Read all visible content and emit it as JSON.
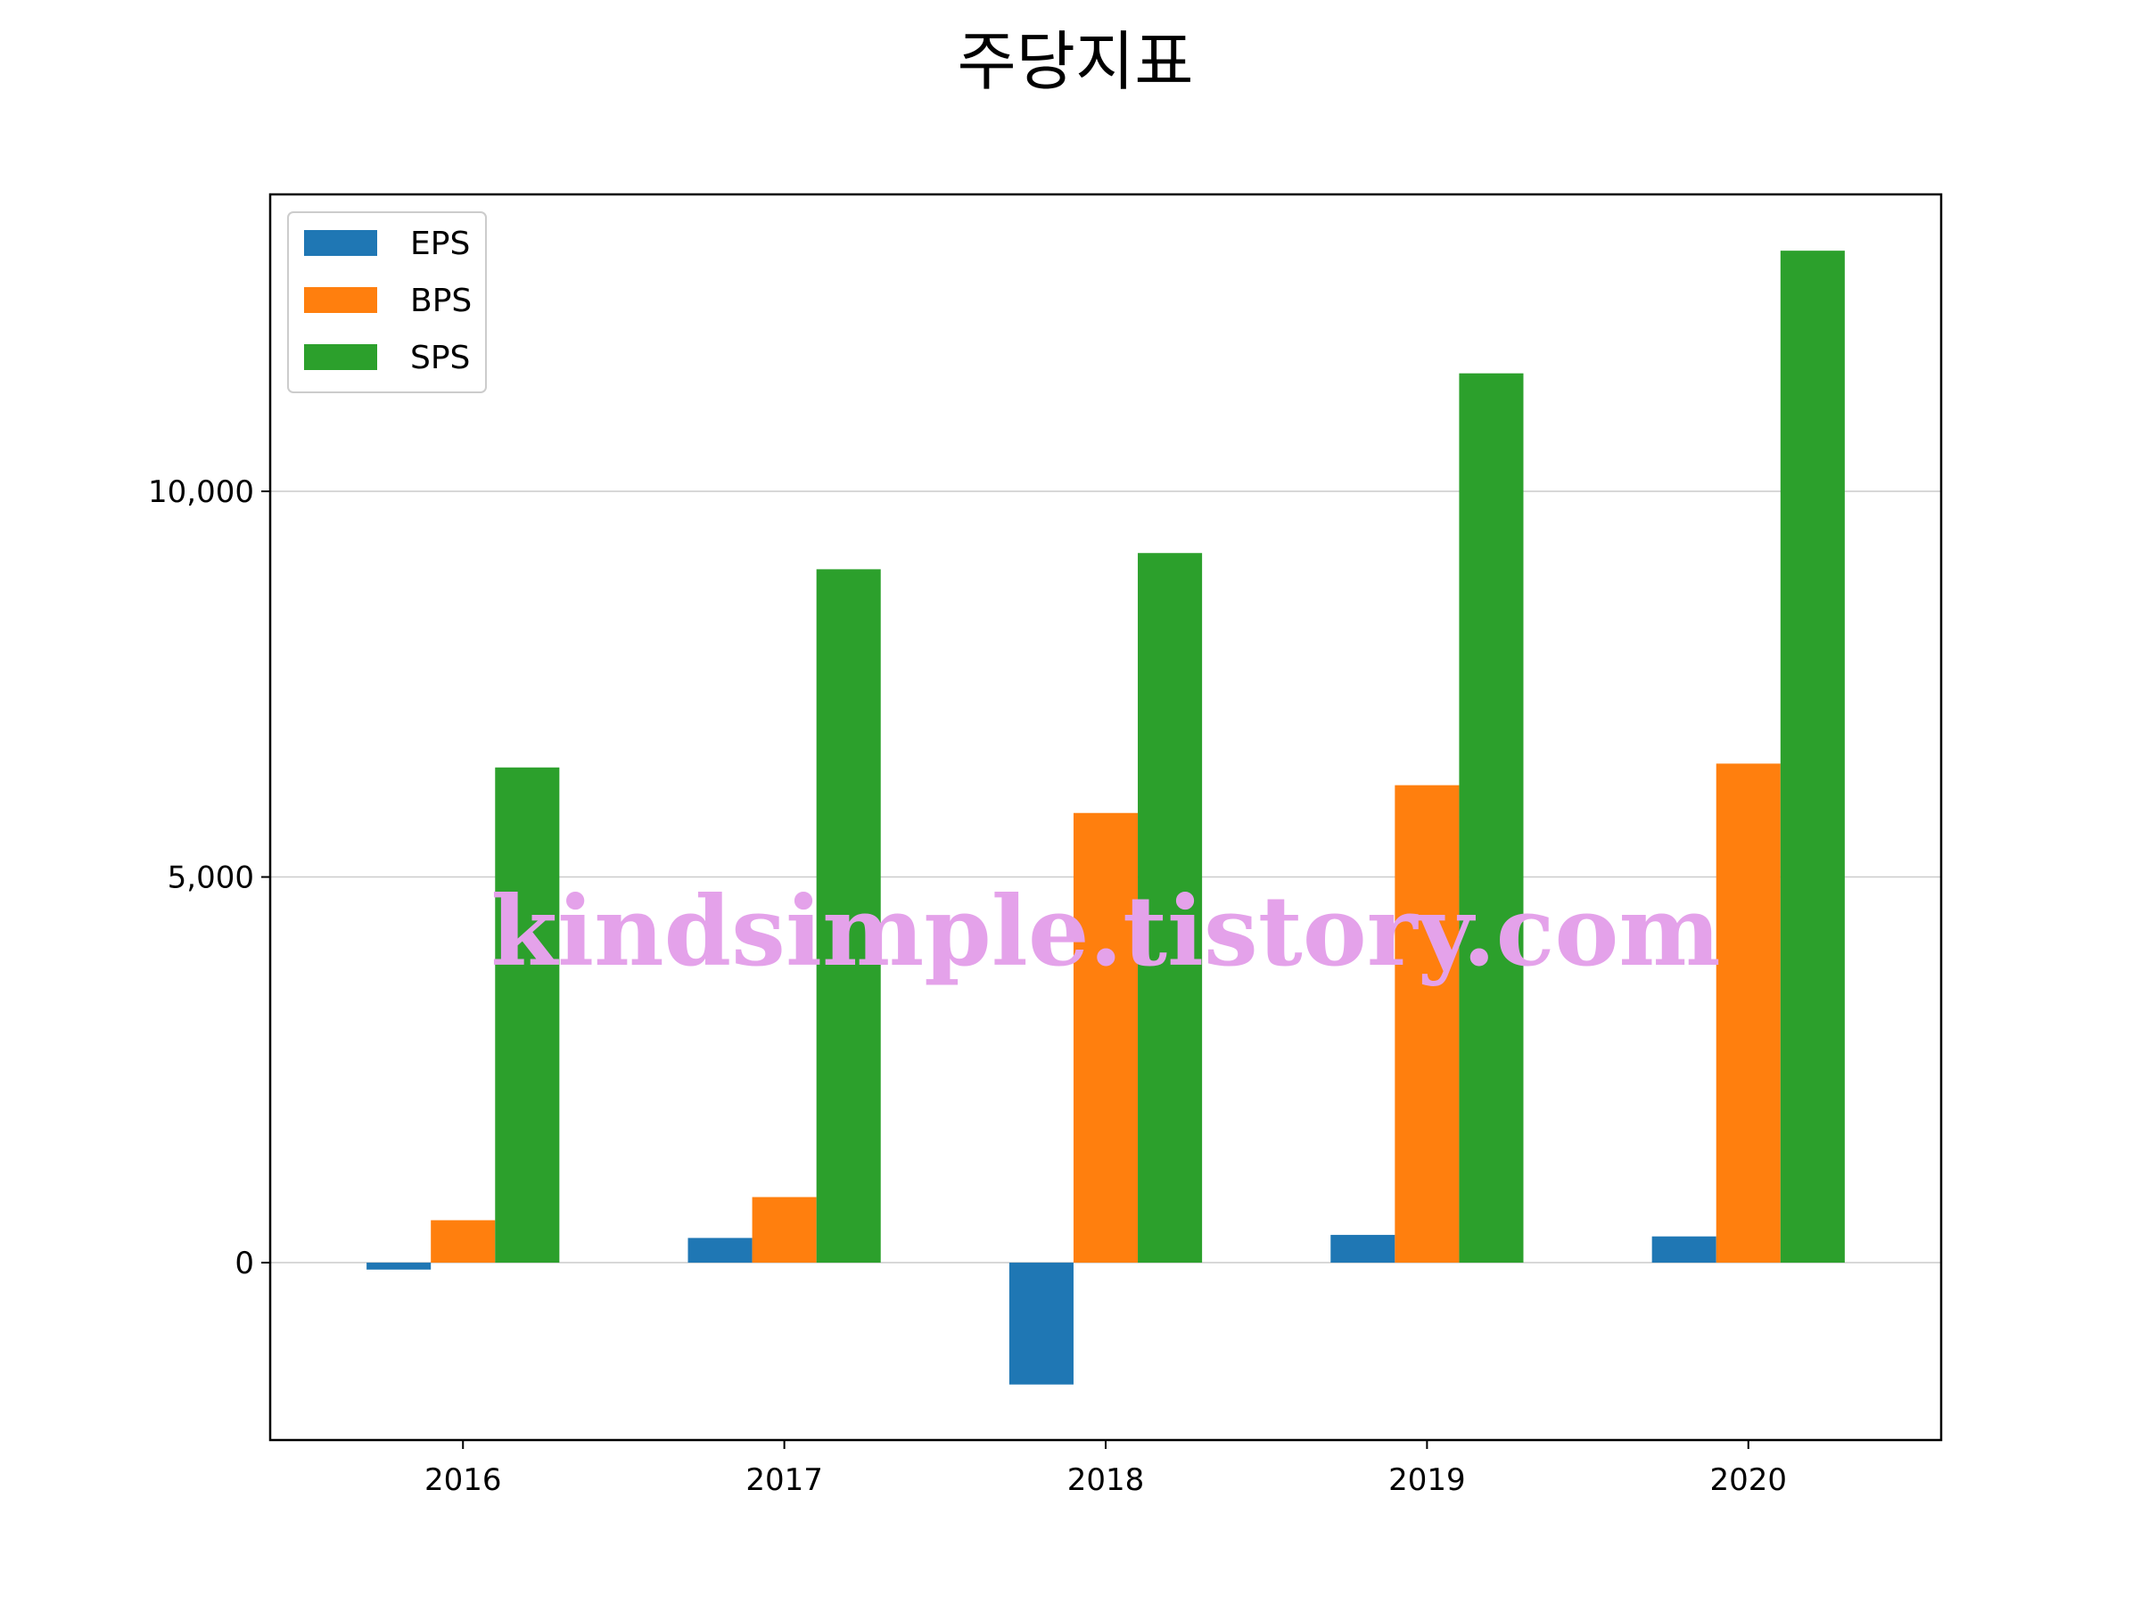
{
  "chart_data": {
    "type": "bar",
    "title": "주당지표",
    "xlabel": "",
    "ylabel": "",
    "categories": [
      "2016",
      "2017",
      "2018",
      "2019",
      "2020"
    ],
    "series": [
      {
        "name": "EPS",
        "color": "#1f77b4",
        "values": [
          -90,
          320,
          -1580,
          360,
          340
        ]
      },
      {
        "name": "BPS",
        "color": "#ff7f0e",
        "values": [
          550,
          850,
          5830,
          6190,
          6470
        ]
      },
      {
        "name": "SPS",
        "color": "#2ca02c",
        "values": [
          6420,
          8990,
          9200,
          11530,
          13120
        ]
      }
    ],
    "ylim": [
      -2300,
      13850
    ],
    "yticks": [
      0,
      5000,
      10000
    ],
    "ytick_labels": [
      "0",
      "5,000",
      "10,000"
    ],
    "grid": "y",
    "legend_position": "top-left"
  },
  "watermark": "kindsimple.tistory.com"
}
